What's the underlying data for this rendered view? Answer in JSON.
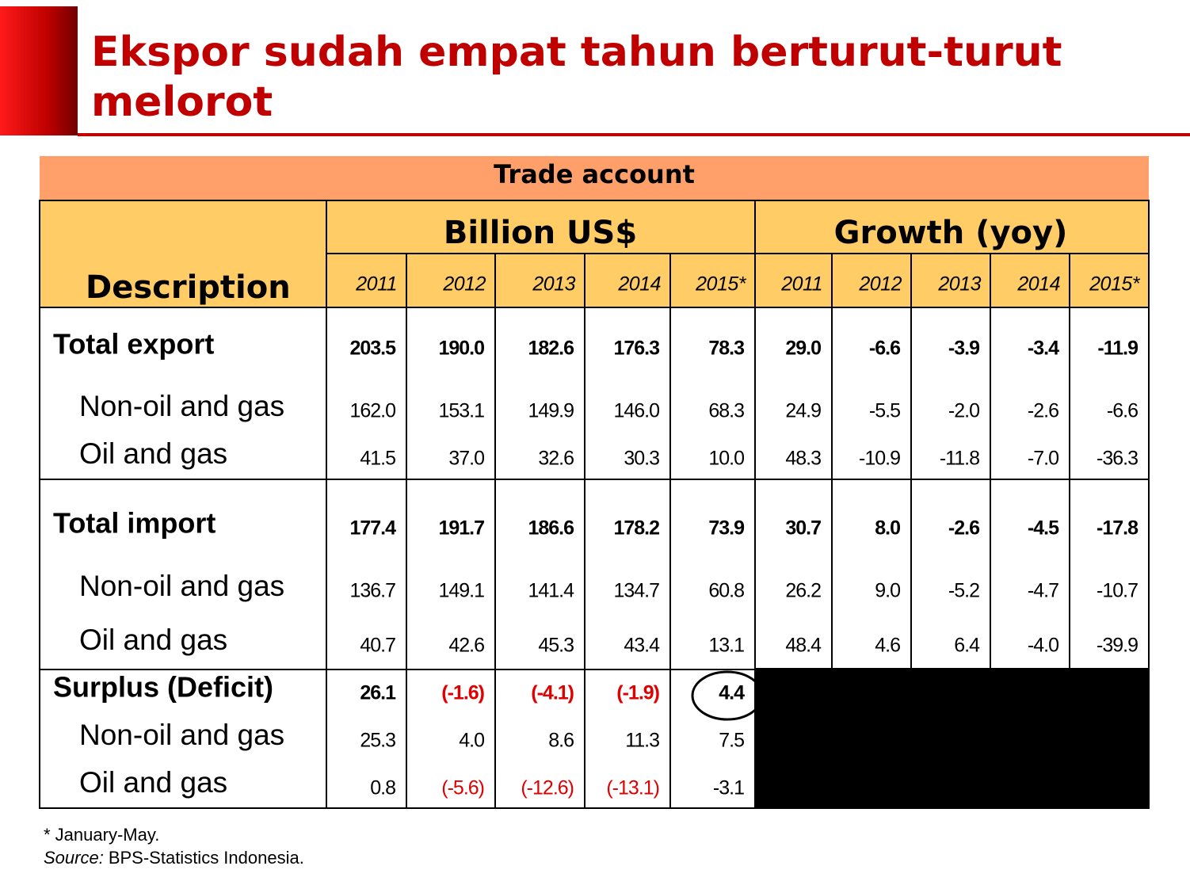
{
  "title_line1": "Ekspor sudah empat tahun berturut-turut",
  "title_line2": "melorot",
  "table": {
    "caption": "Trade account",
    "description_header": "Description",
    "group_headers": [
      "Billion US$",
      "Growth (yoy)"
    ],
    "years": [
      "2011",
      "2012",
      "2013",
      "2014",
      "2015*",
      "2011",
      "2012",
      "2013",
      "2014",
      "2015*"
    ],
    "rows": [
      {
        "label": "Total export",
        "cells": [
          "203.5",
          "190.0",
          "182.6",
          "176.3",
          "78.3",
          "29.0",
          "-6.6",
          "-3.9",
          "-3.4",
          "-11.9"
        ]
      },
      {
        "label": "Non-oil and gas",
        "cells": [
          "162.0",
          "153.1",
          "149.9",
          "146.0",
          "68.3",
          "24.9",
          "-5.5",
          "-2.0",
          "-2.6",
          "-6.6"
        ]
      },
      {
        "label": "Oil and gas",
        "cells": [
          "41.5",
          "37.0",
          "32.6",
          "30.3",
          "10.0",
          "48.3",
          "-10.9",
          "-11.8",
          "-7.0",
          "-36.3"
        ]
      },
      {
        "label": "Total import",
        "cells": [
          "177.4",
          "191.7",
          "186.6",
          "178.2",
          "73.9",
          "30.7",
          "8.0",
          "-2.6",
          "-4.5",
          "-17.8"
        ]
      },
      {
        "label": "Non-oil and gas",
        "cells": [
          "136.7",
          "149.1",
          "141.4",
          "134.7",
          "60.8",
          "26.2",
          "9.0",
          "-5.2",
          "-4.7",
          "-10.7"
        ]
      },
      {
        "label": "Oil and gas",
        "cells": [
          "40.7",
          "42.6",
          "45.3",
          "43.4",
          "13.1",
          "48.4",
          "4.6",
          "6.4",
          "-4.0",
          "-39.9"
        ]
      },
      {
        "label": "Surplus (Deficit)",
        "cells": [
          "26.1",
          "(-1.6)",
          "(-4.1)",
          "(-1.9)",
          "4.4"
        ]
      },
      {
        "label": "Non-oil and gas",
        "cells": [
          "25.3",
          "4.0",
          "8.6",
          "11.3",
          "7.5"
        ]
      },
      {
        "label": "Oil and gas",
        "cells": [
          "0.8",
          "(-5.6)",
          "(-12.6)",
          "(-13.1)",
          "-3.1"
        ]
      }
    ]
  },
  "footnote": "* January-May.",
  "source_label": "Source:",
  "source_text": "BPS-Statistics Indonesia."
}
